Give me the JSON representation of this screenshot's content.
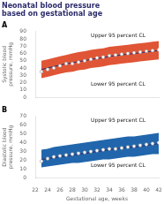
{
  "chart_data": [
    {
      "type": "line",
      "title": "Neonatal blood pressure based on gestational age",
      "subtitle": "A",
      "ylabel": "Systolic blood pressure, mmHg",
      "x": [
        23,
        24,
        25,
        26,
        27,
        28,
        29,
        30,
        31,
        32,
        33,
        34,
        35,
        36,
        37,
        38,
        39,
        40,
        41,
        42
      ],
      "xlim": [
        22,
        42
      ],
      "xticks": [
        22,
        24,
        26,
        28,
        30,
        32,
        34,
        36,
        38,
        40,
        42
      ],
      "ylim": [
        0,
        90
      ],
      "yticks": [
        0,
        10,
        20,
        30,
        40,
        50,
        60,
        70,
        80,
        90
      ],
      "tick_labels": "y",
      "grid": false,
      "series": [
        {
          "type": "area",
          "color": "#e05535",
          "upper": [
            50,
            52,
            54,
            56,
            58,
            60,
            62,
            63,
            65,
            66,
            67,
            69,
            70,
            71,
            72,
            73,
            74,
            75,
            76,
            77
          ],
          "lower": [
            26,
            28,
            30,
            32,
            34,
            35,
            37,
            38,
            40,
            41,
            42,
            44,
            45,
            46,
            47,
            48,
            49,
            50,
            51,
            52
          ]
        },
        {
          "type": "line",
          "color": "#2c2c6c",
          "values": [
            38,
            40,
            42,
            44,
            46,
            47,
            49,
            50,
            52,
            53,
            54,
            56,
            57,
            58,
            59,
            60,
            61,
            62,
            63,
            64
          ]
        },
        {
          "type": "scatter",
          "color": "#ffffff",
          "marker": "circle",
          "values": [
            35,
            38,
            40,
            43,
            46,
            46,
            48,
            50,
            52,
            54,
            55,
            57,
            58,
            59,
            60,
            61,
            62,
            63,
            64,
            65
          ]
        }
      ],
      "annotations": [
        "Upper 95 percent CL",
        "Lower 95 percent CL"
      ]
    },
    {
      "type": "line",
      "subtitle": "B",
      "xlabel": "Gestational age, weeks",
      "ylabel": "Diastolic blood pressure, mmHg",
      "x": [
        23,
        24,
        25,
        26,
        27,
        28,
        29,
        30,
        31,
        32,
        33,
        34,
        35,
        36,
        37,
        38,
        39,
        40,
        41,
        42
      ],
      "xlim": [
        22,
        42
      ],
      "xticks": [
        22,
        24,
        26,
        28,
        30,
        32,
        34,
        36,
        38,
        40,
        42
      ],
      "ylim": [
        0,
        70
      ],
      "yticks": [
        0,
        10,
        20,
        30,
        40,
        50,
        60,
        70
      ],
      "grid": false,
      "series": [
        {
          "type": "area",
          "color": "#2166ac",
          "upper": [
            32,
            33,
            35,
            36,
            37,
            38,
            39,
            40,
            41,
            42,
            43,
            44,
            45,
            46,
            47,
            47,
            48,
            49,
            50,
            51
          ],
          "lower": [
            12,
            13,
            14,
            15,
            16,
            17,
            17,
            18,
            19,
            20,
            21,
            21,
            22,
            23,
            24,
            24,
            25,
            26,
            27,
            27
          ]
        },
        {
          "type": "line",
          "color": "#2c2c6c",
          "values": [
            21,
            22,
            23,
            24,
            25,
            26,
            27,
            28,
            29,
            30,
            31,
            32,
            33,
            34,
            35,
            35,
            36,
            37,
            38,
            39
          ]
        },
        {
          "type": "scatter",
          "color": "#ffffff",
          "marker": "circle",
          "values": [
            19,
            22,
            24,
            25,
            26,
            27,
            28,
            29,
            30,
            31,
            32,
            33,
            33,
            34,
            35,
            36,
            37,
            38,
            39,
            40
          ]
        }
      ],
      "annotations": [
        "Upper 95 percent CL",
        "Lower 95 percent CL"
      ]
    }
  ]
}
